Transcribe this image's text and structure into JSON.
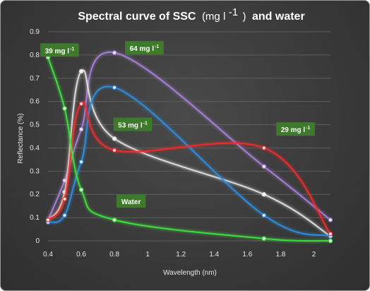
{
  "chart_data": {
    "type": "line",
    "title": {
      "main": "Spectral curve of SSC",
      "unit_open": "(mg l",
      "unit_sup": "-1",
      "unit_close": ")",
      "rest": "and water"
    },
    "xlabel": "Wavelength (nm)",
    "ylabel": "Reflectance (%)",
    "xlim": [
      0.4,
      2.1
    ],
    "ylim": [
      0,
      0.9
    ],
    "x_ticks": [
      "0.4",
      "0.6",
      "0.8",
      "1",
      "1.2",
      "1.4",
      "1.6",
      "1.8",
      "2"
    ],
    "y_ticks": [
      "0",
      "0.1",
      "0.2",
      "0.3",
      "0.4",
      "0.5",
      "0.6",
      "0.7",
      "0.8",
      "0.9"
    ],
    "grid": true,
    "series": [
      {
        "label": "64 mg l",
        "label_sup": "-1",
        "color": "#a77fd8",
        "x": [
          0.4,
          0.5,
          0.6,
          0.8,
          1.7,
          2.1
        ],
        "y": [
          0.09,
          0.26,
          0.48,
          0.81,
          0.32,
          0.09
        ]
      },
      {
        "label": "39 mg l",
        "label_sup": "-1",
        "color": "#e0e0e0",
        "x": [
          0.4,
          0.5,
          0.6,
          0.8,
          1.7,
          2.1
        ],
        "y": [
          0.09,
          0.21,
          0.73,
          0.44,
          0.2,
          0.02
        ]
      },
      {
        "label": "53 mg l",
        "label_sup": "-1",
        "color": "#2e8de0",
        "x": [
          0.4,
          0.5,
          0.6,
          0.8,
          1.7,
          2.1
        ],
        "y": [
          0.08,
          0.11,
          0.34,
          0.66,
          0.11,
          0.02
        ]
      },
      {
        "label": "29 mg l",
        "label_sup": "-1",
        "color": "#f02a2a",
        "x": [
          0.4,
          0.5,
          0.6,
          0.8,
          1.7,
          2.1
        ],
        "y": [
          0.09,
          0.18,
          0.59,
          0.39,
          0.4,
          0.03
        ]
      },
      {
        "label": "Water",
        "label_sup": "",
        "color": "#3ee23e",
        "x": [
          0.4,
          0.5,
          0.6,
          0.8,
          1.7,
          2.1
        ],
        "y": [
          0.79,
          0.57,
          0.22,
          0.09,
          0.01,
          0.0
        ]
      }
    ],
    "annotations": [
      {
        "series": "39 mg l",
        "x": 0.47,
        "y": 0.82
      },
      {
        "series": "64 mg l",
        "x": 0.98,
        "y": 0.83
      },
      {
        "series": "53 mg l",
        "x": 0.91,
        "y": 0.5
      },
      {
        "series": "29 mg l",
        "x": 1.89,
        "y": 0.48
      },
      {
        "series": "Water",
        "x": 0.9,
        "y": 0.17
      }
    ],
    "tag_color": "#3d7a2b"
  }
}
